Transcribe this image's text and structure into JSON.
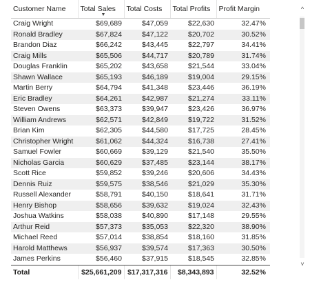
{
  "table": {
    "columns": [
      "Customer Name",
      "Total Sales",
      "Total Costs",
      "Total Profits",
      "Profit Margin"
    ],
    "sort_indicator": "▼",
    "rows": [
      [
        "Craig Wright",
        "$69,689",
        "$47,059",
        "$22,630",
        "32.47%"
      ],
      [
        "Ronald Bradley",
        "$67,824",
        "$47,122",
        "$20,702",
        "30.52%"
      ],
      [
        "Brandon Diaz",
        "$66,242",
        "$43,445",
        "$22,797",
        "34.41%"
      ],
      [
        "Craig Mills",
        "$65,506",
        "$44,717",
        "$20,789",
        "31.74%"
      ],
      [
        "Douglas Franklin",
        "$65,202",
        "$43,658",
        "$21,544",
        "33.04%"
      ],
      [
        "Shawn Wallace",
        "$65,193",
        "$46,189",
        "$19,004",
        "29.15%"
      ],
      [
        "Martin Berry",
        "$64,794",
        "$41,348",
        "$23,446",
        "36.19%"
      ],
      [
        "Eric Bradley",
        "$64,261",
        "$42,987",
        "$21,274",
        "33.11%"
      ],
      [
        "Steven Owens",
        "$63,373",
        "$39,947",
        "$23,426",
        "36.97%"
      ],
      [
        "William Andrews",
        "$62,571",
        "$42,849",
        "$19,722",
        "31.52%"
      ],
      [
        "Brian Kim",
        "$62,305",
        "$44,580",
        "$17,725",
        "28.45%"
      ],
      [
        "Christopher Wright",
        "$61,062",
        "$44,324",
        "$16,738",
        "27.41%"
      ],
      [
        "Samuel Fowler",
        "$60,669",
        "$39,129",
        "$21,540",
        "35.50%"
      ],
      [
        "Nicholas Garcia",
        "$60,629",
        "$37,485",
        "$23,144",
        "38.17%"
      ],
      [
        "Scott Rice",
        "$59,852",
        "$39,246",
        "$20,606",
        "34.43%"
      ],
      [
        "Dennis Ruiz",
        "$59,575",
        "$38,546",
        "$21,029",
        "35.30%"
      ],
      [
        "Russell Alexander",
        "$58,791",
        "$40,150",
        "$18,641",
        "31.71%"
      ],
      [
        "Henry Bishop",
        "$58,656",
        "$39,632",
        "$19,024",
        "32.43%"
      ],
      [
        "Joshua Watkins",
        "$58,038",
        "$40,890",
        "$17,148",
        "29.55%"
      ],
      [
        "Arthur Reid",
        "$57,373",
        "$35,053",
        "$22,320",
        "38.90%"
      ],
      [
        "Michael Reed",
        "$57,014",
        "$38,854",
        "$18,160",
        "31.85%"
      ],
      [
        "Harold Matthews",
        "$56,937",
        "$39,574",
        "$17,363",
        "30.50%"
      ],
      [
        "James Perkins",
        "$56,460",
        "$37,915",
        "$18,545",
        "32.85%"
      ]
    ],
    "total": [
      "Total",
      "$25,661,209",
      "$17,317,316",
      "$8,343,893",
      "32.52%"
    ]
  },
  "scrollbar": {
    "up_icon": "chevron-up-icon",
    "down_icon": "chevron-down-icon",
    "up_glyph": "^",
    "down_glyph": "˅"
  }
}
